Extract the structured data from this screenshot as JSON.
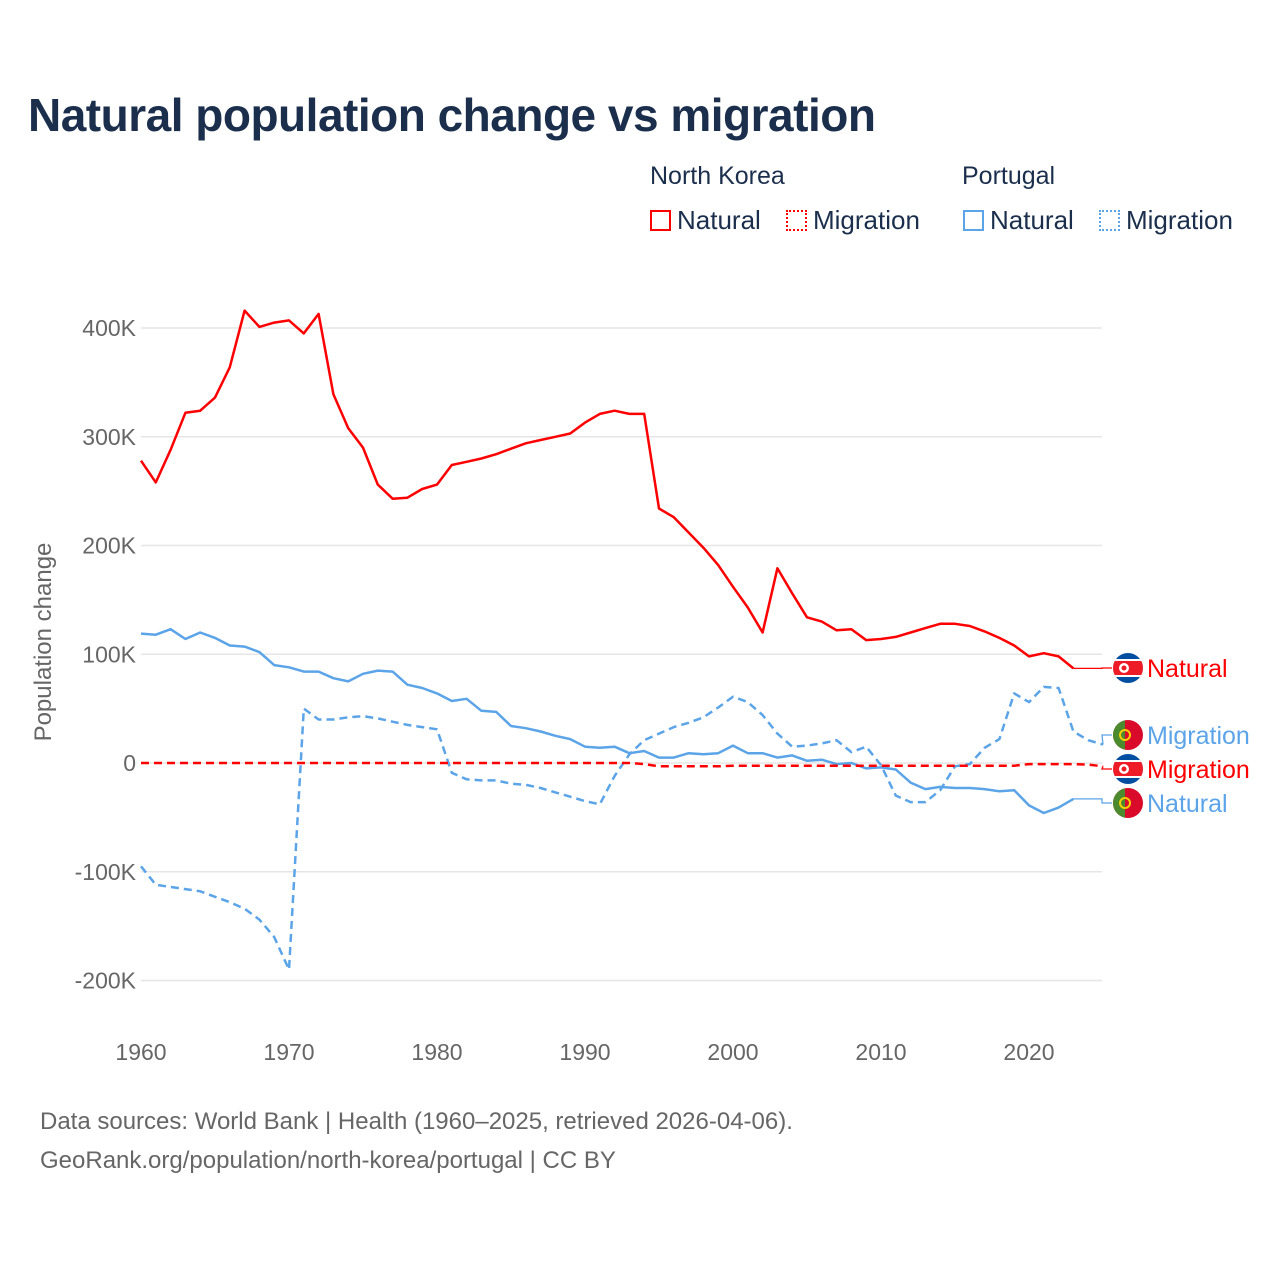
{
  "title": "Natural population change vs migration",
  "legend": {
    "groups": [
      {
        "name": "North Korea",
        "color": "#ff0000",
        "items": [
          "Natural",
          "Migration"
        ]
      },
      {
        "name": "Portugal",
        "color": "#5ba4e8",
        "items": [
          "Natural",
          "Migration"
        ]
      }
    ]
  },
  "footer": {
    "line1": "Data sources: World Bank | Health (1960–2025, retrieved 2026-04-06).",
    "line2": "GeoRank.org/population/north-korea/portugal | CC BY"
  },
  "chart_data": {
    "type": "line",
    "title": "Natural population change vs migration",
    "xlabel": "",
    "ylabel": "Population change",
    "xlim": [
      1960,
      2025
    ],
    "ylim": [
      -200000,
      400000
    ],
    "x_ticks": [
      1960,
      1970,
      1980,
      1990,
      2000,
      2010,
      2020
    ],
    "x_tick_labels": [
      "1960",
      "1970",
      "1980",
      "1990",
      "2000",
      "2010",
      "2020"
    ],
    "y_ticks": [
      -200000,
      -100000,
      0,
      100000,
      200000,
      300000,
      400000
    ],
    "y_tick_labels": [
      "-200K",
      "-100K",
      "0",
      "100K",
      "200K",
      "300K",
      "400K"
    ],
    "grid": true,
    "legend_position": "top-right",
    "series": [
      {
        "name": "North Korea Natural",
        "label": "Natural",
        "country": "North Korea",
        "color": "#ff0000",
        "dash": false,
        "start": 1960,
        "values": [
          278000,
          258000,
          288000,
          322000,
          324000,
          336000,
          364000,
          416000,
          401000,
          405000,
          407000,
          395000,
          413000,
          339000,
          308000,
          290000,
          256000,
          243000,
          244000,
          252000,
          256000,
          274000,
          277000,
          280000,
          284000,
          289000,
          294000,
          297000,
          300000,
          303000,
          313000,
          321000,
          324000,
          321000,
          321000,
          234000,
          226000,
          212000,
          198000,
          182000,
          162000,
          143000,
          120000,
          179000,
          156000,
          134000,
          130000,
          122000,
          123000,
          113000,
          114000,
          116000,
          120000,
          124000,
          128000,
          128000,
          126000,
          121000,
          115000,
          108000,
          98000,
          101000,
          98000,
          87000
        ]
      },
      {
        "name": "North Korea Migration",
        "label": "Migration",
        "country": "North Korea",
        "color": "#ff0000",
        "dash": true,
        "start": 1960,
        "values": [
          0,
          0,
          0,
          0,
          0,
          0,
          0,
          0,
          0,
          0,
          0,
          0,
          0,
          0,
          0,
          0,
          0,
          0,
          0,
          0,
          0,
          0,
          0,
          0,
          0,
          0,
          0,
          0,
          0,
          0,
          0,
          0,
          0,
          0,
          -1000,
          -3000,
          -3000,
          -3000,
          -3000,
          -3000,
          -2500,
          -2500,
          -2500,
          -2500,
          -2500,
          -2500,
          -2500,
          -2500,
          -2500,
          -2500,
          -2500,
          -2500,
          -2500,
          -2500,
          -2500,
          -2500,
          -2500,
          -2500,
          -2500,
          -2500,
          -1000,
          -1000,
          -1000,
          -1000,
          -1500,
          -3000
        ]
      },
      {
        "name": "Portugal Natural",
        "label": "Natural",
        "country": "Portugal",
        "color": "#5ba4e8",
        "dash": false,
        "start": 1960,
        "values": [
          119000,
          118000,
          123000,
          114000,
          120000,
          115000,
          108000,
          107000,
          102000,
          90000,
          88000,
          84000,
          84000,
          78000,
          75000,
          82000,
          85000,
          84000,
          72000,
          69000,
          64000,
          57000,
          59000,
          48000,
          47000,
          34000,
          32000,
          29000,
          25000,
          22000,
          15000,
          14000,
          15000,
          9000,
          11000,
          5000,
          5000,
          9000,
          8000,
          9000,
          16000,
          9000,
          9000,
          5000,
          7000,
          2000,
          3000,
          -1000,
          0,
          -5000,
          -4000,
          -6000,
          -18000,
          -24000,
          -22000,
          -23000,
          -23000,
          -24000,
          -26000,
          -25000,
          -39000,
          -46000,
          -41000,
          -33000
        ]
      },
      {
        "name": "Portugal Migration",
        "label": "Migration",
        "country": "Portugal",
        "color": "#5ba4e8",
        "dash": true,
        "start": 1960,
        "values": [
          -95000,
          -112000,
          -114000,
          -116000,
          -118000,
          -123000,
          -128000,
          -134000,
          -144000,
          -160000,
          -190000,
          50000,
          40000,
          40000,
          42000,
          43000,
          41000,
          38000,
          35000,
          33000,
          31000,
          -9000,
          -15000,
          -16000,
          -16000,
          -19000,
          -20000,
          -23000,
          -27000,
          -31000,
          -35000,
          -38000,
          -12000,
          8000,
          21000,
          27000,
          33000,
          37000,
          42000,
          51000,
          61000,
          56000,
          44000,
          27000,
          15000,
          16000,
          18000,
          21000,
          10000,
          15000,
          -2000,
          -30000,
          -36000,
          -36000,
          -25000,
          -3000,
          -1000,
          14000,
          22000,
          64000,
          56000,
          70000,
          69000,
          29000,
          21000,
          17000
        ]
      }
    ],
    "end_labels": [
      {
        "text": "Natural",
        "country": "North Korea",
        "color": "#ff0000"
      },
      {
        "text": "Migration",
        "country": "Portugal",
        "color": "#5ba4e8"
      },
      {
        "text": "Migration",
        "country": "North Korea",
        "color": "#ff0000"
      },
      {
        "text": "Natural",
        "country": "Portugal",
        "color": "#5ba4e8"
      }
    ]
  }
}
